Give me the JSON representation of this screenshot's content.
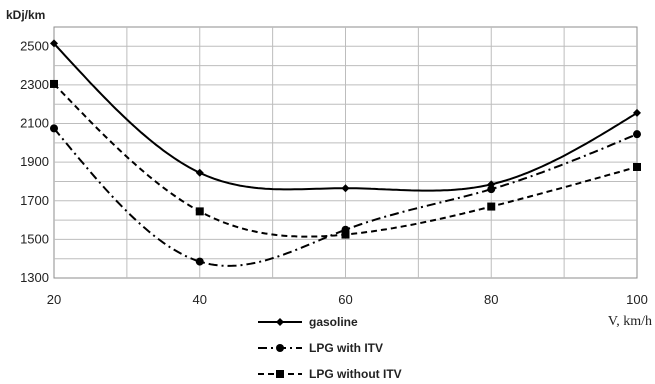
{
  "chart_data": {
    "type": "line",
    "ylabel": "kDj/km",
    "xlabel": "V,  km/h",
    "xlim": [
      20,
      100
    ],
    "ylim": [
      1300,
      2600
    ],
    "x_ticks": [
      "20",
      "30",
      "40",
      "50",
      "60",
      "70",
      "80",
      "90",
      "100"
    ],
    "x_tick_labels": [
      "20",
      "40",
      "60",
      "80",
      "100"
    ],
    "y_ticks": [
      "1300",
      "1500",
      "1700",
      "1900",
      "2100",
      "2300",
      "2500"
    ],
    "grid": true,
    "legend": "bottom",
    "series": [
      {
        "name": "gasoline",
        "x": [
          20,
          40,
          60,
          80,
          100
        ],
        "values": [
          2515,
          1845,
          1765,
          1785,
          2155
        ],
        "marker": "diamond",
        "line_style": "solid"
      },
      {
        "name": "LPG with ITV",
        "x": [
          20,
          40,
          60,
          80,
          100
        ],
        "values": [
          2075,
          1385,
          1550,
          1760,
          2045
        ],
        "marker": "circle",
        "line_style": "dash-dot"
      },
      {
        "name": "LPG without ITV",
        "x": [
          20,
          40,
          60,
          80,
          100
        ],
        "values": [
          2305,
          1645,
          1525,
          1670,
          1875
        ],
        "marker": "square",
        "line_style": "dashed"
      }
    ]
  }
}
